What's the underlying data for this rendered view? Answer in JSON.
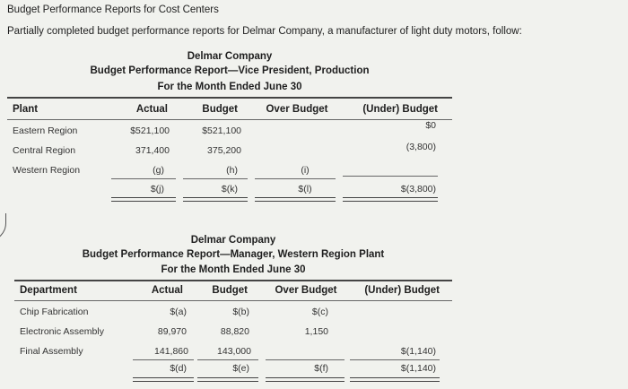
{
  "title": "Budget Performance Reports for Cost Centers",
  "intro": "Partially completed budget performance reports for Delmar Company, a manufacturer of light duty motors, follow:",
  "report1": {
    "company": "Delmar Company",
    "name": "Budget Performance Report—Vice President, Production",
    "period": "For the Month Ended June 30",
    "headers": [
      "Plant",
      "Actual",
      "Budget",
      "Over Budget",
      "(Under) Budget"
    ],
    "rows": [
      {
        "label": "Eastern Region",
        "actual": "$521,100",
        "budget": "$521,100",
        "over": "",
        "under": "$0"
      },
      {
        "label": "Central Region",
        "actual": "371,400",
        "budget": "375,200",
        "over": "",
        "under": "(3,800)"
      },
      {
        "label": "Western Region",
        "actual": "(g)",
        "budget": "(h)",
        "over": "(i)",
        "under": ""
      }
    ],
    "totals": {
      "actual": "$(j)",
      "budget": "$(k)",
      "over": "$(l)",
      "under": "$(3,800)"
    }
  },
  "report2": {
    "company": "Delmar Company",
    "name": "Budget Performance Report—Manager, Western Region Plant",
    "period": "For the Month Ended June 30",
    "headers": [
      "Department",
      "Actual",
      "Budget",
      "Over Budget",
      "(Under) Budget"
    ],
    "rows": [
      {
        "label": "Chip Fabrication",
        "actual": "$(a)",
        "budget": "$(b)",
        "over": "$(c)",
        "under": ""
      },
      {
        "label": "Electronic Assembly",
        "actual": "89,970",
        "budget": "88,820",
        "over": "1,150",
        "under": ""
      },
      {
        "label": "Final Assembly",
        "actual": "141,860",
        "budget": "143,000",
        "over": "",
        "under": "$(1,140)"
      }
    ],
    "totals": {
      "actual": "$(d)",
      "budget": "$(e)",
      "over": "$(f)",
      "under": "$(1,140)"
    }
  }
}
